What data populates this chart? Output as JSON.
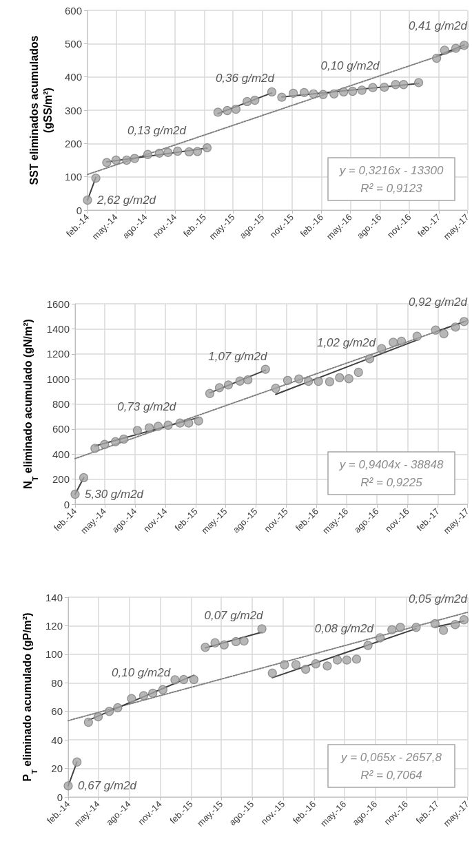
{
  "chart_data": [
    {
      "type": "scatter",
      "ylabel": "SST eliminados acumulados\n(gSS/m²)",
      "marker": "circle",
      "grid": true,
      "x": [
        "2014-02-01",
        "2014-02-27",
        "2014-04-02",
        "2014-05-01",
        "2014-06-03",
        "2014-06-28",
        "2014-08-08",
        "2014-09-13",
        "2014-10-10",
        "2014-11-09",
        "2014-12-15",
        "2015-01-10",
        "2015-02-09",
        "2015-03-15",
        "2015-04-13",
        "2015-05-10",
        "2015-06-14",
        "2015-07-08",
        "2015-08-30",
        "2015-09-30",
        "2015-11-05",
        "2015-12-09",
        "2016-01-07",
        "2016-02-06",
        "2016-03-11",
        "2016-04-10",
        "2016-05-08",
        "2016-06-06",
        "2016-07-10",
        "2016-08-15",
        "2016-09-19",
        "2016-10-14",
        "2016-11-30",
        "2017-01-25",
        "2017-02-19",
        "2017-03-26",
        "2017-04-21"
      ],
      "xlim": [
        "2014-02-01",
        "2017-05-01"
      ],
      "xticks": [
        {
          "value": "2014-02-01",
          "label": "feb.-14"
        },
        {
          "value": "2014-05-01",
          "label": "may.-14"
        },
        {
          "value": "2014-08-01",
          "label": "ago.-14"
        },
        {
          "value": "2014-11-01",
          "label": "nov.-14"
        },
        {
          "value": "2015-02-01",
          "label": "feb.-15"
        },
        {
          "value": "2015-05-01",
          "label": "may.-15"
        },
        {
          "value": "2015-08-01",
          "label": "ago.-15"
        },
        {
          "value": "2015-11-01",
          "label": "nov.-15"
        },
        {
          "value": "2016-02-01",
          "label": "feb.-16"
        },
        {
          "value": "2016-05-01",
          "label": "may.-16"
        },
        {
          "value": "2016-08-01",
          "label": "ago.-16"
        },
        {
          "value": "2016-11-01",
          "label": "nov.-16"
        },
        {
          "value": "2017-02-01",
          "label": "feb.-17"
        },
        {
          "value": "2017-05-01",
          "label": "may.-17"
        }
      ],
      "ylim": [
        0,
        600
      ],
      "yticks": [
        0,
        100,
        200,
        300,
        400,
        500,
        600
      ],
      "series": [
        {
          "type": "scatter",
          "color": "#a5a5a5",
          "values": [
            30,
            96,
            143,
            150,
            150,
            155,
            167,
            171,
            173,
            177,
            175,
            176,
            187,
            294,
            299,
            303,
            326,
            330,
            355,
            339,
            351,
            353,
            349,
            347,
            349,
            355,
            357,
            360,
            368,
            369,
            377,
            377,
            383,
            456,
            480,
            486,
            495
          ]
        },
        {
          "type": "line",
          "color": "#404040",
          "marker": "none",
          "line_style": "solid",
          "x": [
            "2014-02-01",
            "2014-02-27"
          ],
          "values": [
            30,
            98
          ]
        },
        {
          "type": "line",
          "color": "#404040",
          "marker": "none",
          "line_style": "solid",
          "x": [
            "2014-04-02",
            "2015-02-09"
          ],
          "values": [
            145,
            186
          ]
        },
        {
          "type": "line",
          "color": "#404040",
          "marker": "none",
          "line_style": "solid",
          "x": [
            "2015-03-15",
            "2015-08-30"
          ],
          "values": [
            290,
            352
          ]
        },
        {
          "type": "line",
          "color": "#404040",
          "marker": "none",
          "line_style": "solid",
          "x": [
            "2015-09-30",
            "2016-11-30"
          ],
          "values": [
            340,
            380
          ]
        },
        {
          "type": "line",
          "color": "#404040",
          "marker": "none",
          "line_style": "solid",
          "x": [
            "2017-01-25",
            "2017-04-21"
          ],
          "values": [
            462,
            496
          ]
        },
        {
          "type": "line",
          "color": "#808080",
          "marker": "none",
          "line_style": "dotted",
          "x": [
            "2014-02-01",
            "2017-05-01"
          ],
          "values": [
            107,
            492
          ]
        }
      ],
      "annotations": [
        {
          "text": "0,41 g/m2d",
          "x": "2017-03-09",
          "y": 479
        },
        {
          "text": "0,10 g/m2d",
          "x": "2016-04-30",
          "y": 360
        },
        {
          "text": "0,36 g/m2d",
          "x": "2015-06-07",
          "y": 321
        },
        {
          "text": "0,13 g/m2d",
          "x": "2014-09-05",
          "y": 165.5
        },
        {
          "text": "2,62 g/m2d",
          "x": "2014-02-01",
          "y": 30
        },
        "y = 0,3216x - 13300",
        "R² = 0,9123"
      ]
    },
    {
      "type": "scatter",
      "ylabel": "N$_{T}$ eliminado acumulado (gN/m²)",
      "marker": "circle",
      "grid": true,
      "x": [
        "2014-02-01",
        "2014-02-27",
        "2014-04-02",
        "2014-05-01",
        "2014-06-03",
        "2014-06-28",
        "2014-08-08",
        "2014-09-13",
        "2014-10-10",
        "2014-11-09",
        "2014-12-15",
        "2015-01-10",
        "2015-02-09",
        "2015-03-15",
        "2015-04-13",
        "2015-05-10",
        "2015-06-14",
        "2015-07-08",
        "2015-08-30",
        "2015-09-30",
        "2015-11-05",
        "2015-12-09",
        "2016-01-07",
        "2016-02-06",
        "2016-03-11",
        "2016-04-10",
        "2016-05-08",
        "2016-06-06",
        "2016-07-10",
        "2016-08-15",
        "2016-09-19",
        "2016-10-14",
        "2016-11-30",
        "2017-01-25",
        "2017-02-19",
        "2017-03-26",
        "2017-04-21"
      ],
      "xlim": [
        "2014-02-01",
        "2017-05-01"
      ],
      "xticks": [
        {
          "value": "2014-02-01",
          "label": "feb.-14"
        },
        {
          "value": "2014-05-01",
          "label": "may.-14"
        },
        {
          "value": "2014-08-01",
          "label": "ago.-14"
        },
        {
          "value": "2014-11-01",
          "label": "nov.-14"
        },
        {
          "value": "2015-02-01",
          "label": "feb.-15"
        },
        {
          "value": "2015-05-01",
          "label": "may.-15"
        },
        {
          "value": "2015-08-01",
          "label": "ago.-15"
        },
        {
          "value": "2015-11-01",
          "label": "nov.-15"
        },
        {
          "value": "2016-02-01",
          "label": "feb.-16"
        },
        {
          "value": "2016-05-01",
          "label": "may.-16"
        },
        {
          "value": "2016-08-01",
          "label": "ago.-16"
        },
        {
          "value": "2016-11-01",
          "label": "nov.-16"
        },
        {
          "value": "2017-02-01",
          "label": "feb.-17"
        },
        {
          "value": "2017-05-01",
          "label": "may.-17"
        }
      ],
      "ylim": [
        0,
        1600
      ],
      "yticks": [
        0,
        200,
        400,
        600,
        800,
        1000,
        1200,
        1400,
        1600
      ],
      "series": [
        {
          "type": "scatter",
          "color": "#a5a5a5",
          "values": [
            80,
            212,
            446,
            477,
            499,
            520,
            588,
            610,
            622,
            631,
            648,
            648,
            665,
            884,
            930,
            952,
            983,
            993,
            1077,
            925,
            988,
            1000,
            981,
            981,
            978,
            1010,
            1002,
            1053,
            1161,
            1241,
            1292,
            1301,
            1340,
            1390,
            1361,
            1414,
            1458
          ]
        },
        {
          "type": "line",
          "color": "#404040",
          "marker": "none",
          "line_style": "solid",
          "x": [
            "2014-02-01",
            "2014-02-27"
          ],
          "values": [
            80,
            212
          ]
        },
        {
          "type": "line",
          "color": "#404040",
          "marker": "none",
          "line_style": "solid",
          "x": [
            "2014-04-02",
            "2015-02-09"
          ],
          "values": [
            465,
            692
          ]
        },
        {
          "type": "line",
          "color": "#404040",
          "marker": "none",
          "line_style": "solid",
          "x": [
            "2015-03-15",
            "2015-08-30"
          ],
          "values": [
            889,
            1070
          ]
        },
        {
          "type": "line",
          "color": "#404040",
          "marker": "none",
          "line_style": "solid",
          "x": [
            "2015-09-30",
            "2016-11-30"
          ],
          "values": [
            877,
            1311
          ]
        },
        {
          "type": "line",
          "color": "#404040",
          "marker": "none",
          "line_style": "solid",
          "x": [
            "2017-01-25",
            "2017-04-21"
          ],
          "values": [
            1376,
            1458
          ]
        },
        {
          "type": "line",
          "color": "#808080",
          "marker": "none",
          "line_style": "dotted",
          "x": [
            "2014-02-01",
            "2017-05-01"
          ],
          "values": [
            364,
            1465
          ]
        }
      ],
      "annotations": [
        {
          "text": "0,92 g/m2d",
          "x": "2017-03-09",
          "y": 1417
        },
        {
          "text": "1,02 g/m2d",
          "x": "2016-04-30",
          "y": 1094
        },
        {
          "text": "1,07 g/m2d",
          "x": "2015-06-07",
          "y": 979.5
        },
        {
          "text": "0,73 g/m2d",
          "x": "2014-09-05",
          "y": 578.5
        },
        {
          "text": "5,30 g/m2d",
          "x": "2014-02-01",
          "y": 80
        },
        "y = 0,9404x - 38848",
        "R² = 0,9225"
      ]
    },
    {
      "type": "scatter",
      "ylabel": "P$_{T}$ eliminado acumulado (gP/m²)",
      "marker": "circle",
      "grid": true,
      "x": [
        "2014-02-01",
        "2014-02-27",
        "2014-04-02",
        "2014-05-01",
        "2014-06-03",
        "2014-06-28",
        "2014-08-08",
        "2014-09-13",
        "2014-10-10",
        "2014-11-09",
        "2014-12-15",
        "2015-01-10",
        "2015-02-09",
        "2015-03-15",
        "2015-04-13",
        "2015-05-10",
        "2015-06-14",
        "2015-07-08",
        "2015-08-30",
        "2015-09-30",
        "2015-11-05",
        "2015-12-09",
        "2016-01-07",
        "2016-02-06",
        "2016-03-11",
        "2016-04-10",
        "2016-05-08",
        "2016-06-06",
        "2016-07-10",
        "2016-08-15",
        "2016-09-19",
        "2016-10-14",
        "2016-11-30",
        "2017-01-25",
        "2017-02-19",
        "2017-03-26",
        "2017-04-21"
      ],
      "xlim": [
        "2014-02-01",
        "2017-05-01"
      ],
      "xticks": [
        {
          "value": "2014-02-01",
          "label": "feb.-14"
        },
        {
          "value": "2014-05-01",
          "label": "may.-14"
        },
        {
          "value": "2014-08-01",
          "label": "ago.-14"
        },
        {
          "value": "2014-11-01",
          "label": "nov.-14"
        },
        {
          "value": "2015-02-01",
          "label": "feb.-15"
        },
        {
          "value": "2015-05-01",
          "label": "may.-15"
        },
        {
          "value": "2015-08-01",
          "label": "ago.-15"
        },
        {
          "value": "2015-11-01",
          "label": "nov.-15"
        },
        {
          "value": "2016-02-01",
          "label": "feb.-16"
        },
        {
          "value": "2016-05-01",
          "label": "may.-16"
        },
        {
          "value": "2016-08-01",
          "label": "ago.-16"
        },
        {
          "value": "2016-11-01",
          "label": "nov.-16"
        },
        {
          "value": "2017-02-01",
          "label": "feb.-17"
        },
        {
          "value": "2017-05-01",
          "label": "may.-17"
        }
      ],
      "ylim": [
        0,
        140
      ],
      "yticks": [
        0,
        20,
        40,
        60,
        80,
        100,
        120,
        140
      ],
      "series": [
        {
          "type": "scatter",
          "color": "#a5a5a5",
          "values": [
            7.8,
            24.5,
            52.4,
            56.2,
            60,
            62.5,
            68.9,
            71,
            72.7,
            75.2,
            82.1,
            82.3,
            82.3,
            104.9,
            108,
            106.6,
            108.9,
            109.3,
            117.8,
            86.8,
            92.7,
            92.7,
            89.5,
            93.3,
            91.8,
            96,
            96,
            96.6,
            106.2,
            111.5,
            117.2,
            118.9,
            118.9,
            121.4,
            116.8,
            120.8,
            124.2
          ]
        },
        {
          "type": "line",
          "color": "#404040",
          "marker": "none",
          "line_style": "solid",
          "x": [
            "2014-02-01",
            "2014-02-27"
          ],
          "values": [
            7.8,
            24.5
          ]
        },
        {
          "type": "line",
          "color": "#404040",
          "marker": "none",
          "line_style": "solid",
          "x": [
            "2014-04-02",
            "2015-02-09"
          ],
          "values": [
            53.8,
            85.3
          ]
        },
        {
          "type": "line",
          "color": "#404040",
          "marker": "none",
          "line_style": "solid",
          "x": [
            "2015-03-15",
            "2015-08-30"
          ],
          "values": [
            104.5,
            115.5
          ]
        },
        {
          "type": "line",
          "color": "#404040",
          "marker": "none",
          "line_style": "solid",
          "x": [
            "2015-09-30",
            "2016-11-30"
          ],
          "values": [
            83.6,
            118
          ]
        },
        {
          "type": "line",
          "color": "#404040",
          "marker": "none",
          "line_style": "solid",
          "x": [
            "2017-01-25",
            "2017-04-21"
          ],
          "values": [
            119.1,
            123.3
          ]
        },
        {
          "type": "line",
          "color": "#808080",
          "marker": "none",
          "line_style": "dotted",
          "x": [
            "2014-02-01",
            "2017-05-01"
          ],
          "values": [
            53.5,
            129.4
          ]
        }
      ],
      "annotations": [
        {
          "text": "0,05 g/m2d",
          "x": "2017-03-09",
          "y": 121.2
        },
        {
          "text": "0,08 g/m2d",
          "x": "2016-04-30",
          "y": 100.8
        },
        {
          "text": "0,07 g/m2d",
          "x": "2015-06-07",
          "y": 110
        },
        {
          "text": "0,10 g/m2d",
          "x": "2014-09-05",
          "y": 69.55
        },
        {
          "text": "0,67 g/m2d",
          "x": "2014-02-01",
          "y": 7.8
        },
        "y = 0,065x - 2657,8",
        "R² = 0,7064"
      ]
    }
  ]
}
